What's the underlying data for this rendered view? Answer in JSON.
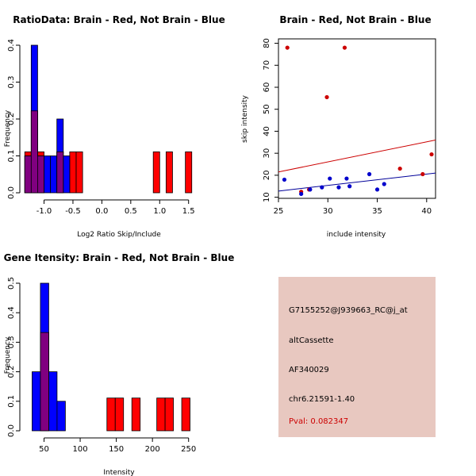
{
  "chart_data": [
    {
      "type": "histogram",
      "title": "RatioData: Brain - Red, Not Brain - Blue",
      "xlabel": "Log2 Ratio Skip/Include",
      "ylabel": "Frequency",
      "xlim": [
        -1.35,
        1.6
      ],
      "ylim": [
        0,
        0.4
      ],
      "xticks": [
        "-1.0",
        "-0.5",
        "0.0",
        "0.5",
        "1.0",
        "1.5"
      ],
      "xtick_values": [
        -1.0,
        -0.5,
        0.0,
        0.5,
        1.0,
        1.5
      ],
      "yticks": [
        "0.0",
        "0.1",
        "0.2",
        "0.3",
        "0.4"
      ],
      "ytick_values": [
        0,
        0.1,
        0.2,
        0.3,
        0.4
      ],
      "bin_width": 0.1111,
      "series": [
        {
          "name": "Brain",
          "color": "#ff0000",
          "bins": [
            {
              "start": -1.333,
              "freq": 0.111
            },
            {
              "start": -1.222,
              "freq": 0.222
            },
            {
              "start": -1.111,
              "freq": 0.111
            },
            {
              "start": -0.778,
              "freq": 0.111
            },
            {
              "start": -0.556,
              "freq": 0.111
            },
            {
              "start": -0.444,
              "freq": 0.111
            },
            {
              "start": 0.889,
              "freq": 0.111
            },
            {
              "start": 1.111,
              "freq": 0.111
            },
            {
              "start": 1.444,
              "freq": 0.111
            }
          ]
        },
        {
          "name": "Not Brain",
          "color": "#0000ff",
          "bins": [
            {
              "start": -1.333,
              "freq": 0.1
            },
            {
              "start": -1.222,
              "freq": 0.4
            },
            {
              "start": -1.111,
              "freq": 0.1
            },
            {
              "start": -1.0,
              "freq": 0.1
            },
            {
              "start": -0.889,
              "freq": 0.1
            },
            {
              "start": -0.778,
              "freq": 0.2
            },
            {
              "start": -0.667,
              "freq": 0.1
            }
          ]
        }
      ]
    },
    {
      "type": "scatter",
      "title": "Brain - Red, Not Brain - Blue",
      "xlabel": "include intensity",
      "ylabel": "skip intensity",
      "xlim": [
        25,
        40.9
      ],
      "ylim": [
        9.5,
        82
      ],
      "xticks": [
        "25",
        "30",
        "35",
        "40"
      ],
      "xtick_values": [
        25,
        30,
        35,
        40
      ],
      "yticks": [
        "10",
        "20",
        "30",
        "40",
        "50",
        "60",
        "70",
        "80"
      ],
      "ytick_values": [
        10,
        20,
        30,
        40,
        50,
        60,
        70,
        80
      ],
      "series": [
        {
          "name": "Brain",
          "color": "#cc0000",
          "points": [
            [
              25.9,
              78
            ],
            [
              31.7,
              78
            ],
            [
              29.9,
              55.5
            ],
            [
              40.5,
              29.5
            ],
            [
              37.3,
              23
            ],
            [
              39.6,
              20.5
            ],
            [
              28.1,
              13.5
            ],
            [
              27.3,
              12.5
            ]
          ]
        },
        {
          "name": "Not Brain",
          "color": "#0000cc",
          "points": [
            [
              25.6,
              18
            ],
            [
              27.3,
              11.5
            ],
            [
              28.2,
              13.5
            ],
            [
              29.4,
              14.5
            ],
            [
              30.2,
              18.5
            ],
            [
              31.1,
              14.5
            ],
            [
              31.9,
              18.5
            ],
            [
              32.2,
              15
            ],
            [
              34.2,
              20.5
            ],
            [
              35.0,
              13.5
            ],
            [
              35.7,
              16
            ]
          ]
        }
      ],
      "fit_lines": [
        {
          "name": "Brain fit",
          "color": "#cc0000",
          "from": [
            25,
            21.5
          ],
          "to": [
            40.9,
            36
          ]
        },
        {
          "name": "Not Brain fit",
          "color": "#000099",
          "from": [
            25,
            12.8
          ],
          "to": [
            40.9,
            21
          ]
        }
      ]
    },
    {
      "type": "histogram",
      "title": "Gene Itensity: Brain - Red, Not Brain - Blue",
      "xlabel": "Intensity",
      "ylabel": "Frequency",
      "xlim": [
        22,
        258
      ],
      "ylim": [
        0,
        0.5
      ],
      "xticks": [
        "50",
        "100",
        "150",
        "200",
        "250"
      ],
      "xtick_values": [
        50,
        100,
        150,
        200,
        250
      ],
      "yticks": [
        "0.0",
        "0.1",
        "0.2",
        "0.3",
        "0.4",
        "0.5"
      ],
      "ytick_values": [
        0,
        0.1,
        0.2,
        0.3,
        0.4,
        0.5
      ],
      "bin_width": 11.5,
      "series": [
        {
          "name": "Brain",
          "color": "#ff0000",
          "bins": [
            {
              "start": 45,
              "freq": 0.333
            },
            {
              "start": 137,
              "freq": 0.111
            },
            {
              "start": 148.5,
              "freq": 0.111
            },
            {
              "start": 171.5,
              "freq": 0.111
            },
            {
              "start": 206,
              "freq": 0.111
            },
            {
              "start": 217.5,
              "freq": 0.111
            },
            {
              "start": 240.5,
              "freq": 0.111
            }
          ]
        },
        {
          "name": "Not Brain",
          "color": "#0000ff",
          "bins": [
            {
              "start": 33.5,
              "freq": 0.2
            },
            {
              "start": 45,
              "freq": 0.5
            },
            {
              "start": 56.5,
              "freq": 0.2
            },
            {
              "start": 68,
              "freq": 0.1
            }
          ]
        }
      ]
    }
  ],
  "info": {
    "probe_id": "G7155252@J939663_RC@j_at",
    "event_type": "altCassette",
    "accession": "AF340029",
    "location": "chr6.21591-1.40",
    "pval": "Pval: 0.082347",
    "background_color": "#e8c8c0",
    "pval_color": "#cc0000"
  }
}
